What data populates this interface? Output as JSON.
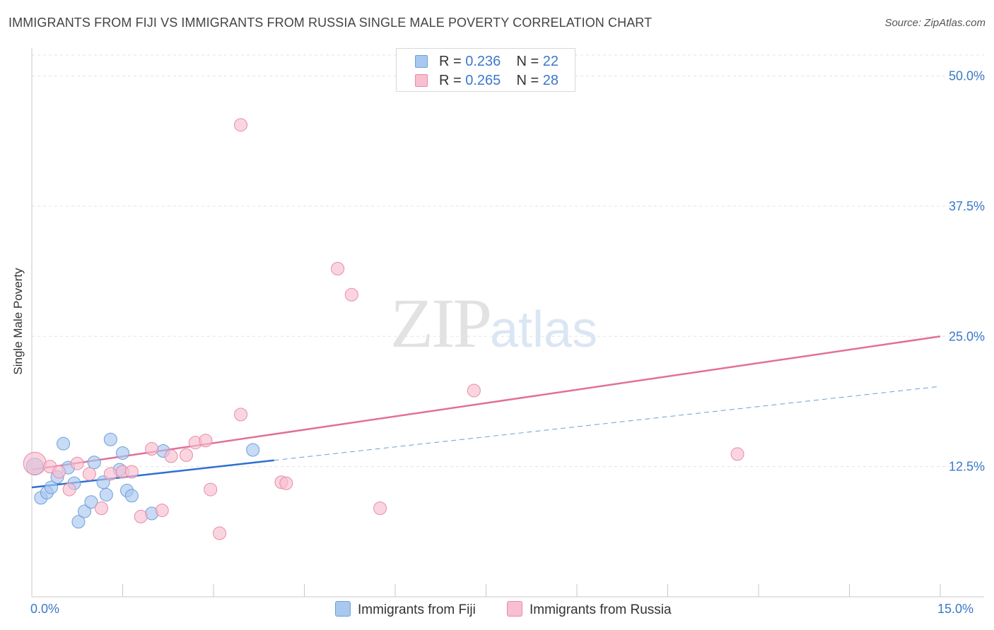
{
  "header": {
    "title": "IMMIGRANTS FROM FIJI VS IMMIGRANTS FROM RUSSIA SINGLE MALE POVERTY CORRELATION CHART",
    "source": "Source: ZipAtlas.com"
  },
  "watermark": {
    "zip": "ZIP",
    "atlas": "atlas"
  },
  "legend": {
    "rows": [
      {
        "r_label": "R =",
        "r_value": "0.236",
        "n_label": "N =",
        "n_value": "22",
        "color": "#a9c8ef",
        "border": "#6c9fdc"
      },
      {
        "r_label": "R =",
        "r_value": "0.265",
        "n_label": "N =",
        "n_value": "28",
        "color": "#f7bfd0",
        "border": "#e98aa8"
      }
    ]
  },
  "bottom_legend": {
    "fiji": "Immigrants from Fiji",
    "russia": "Immigrants from Russia"
  },
  "chart_data": {
    "type": "scatter",
    "title": "IMMIGRANTS FROM FIJI VS IMMIGRANTS FROM RUSSIA SINGLE MALE POVERTY CORRELATION CHART",
    "xlabel": "",
    "ylabel": "Single Male Poverty",
    "xlim": [
      0,
      15
    ],
    "ylim": [
      0,
      52
    ],
    "x_tick_labels": {
      "min": "0.0%",
      "max": "15.0%"
    },
    "y_ticks": [
      12.5,
      25.0,
      37.5,
      50.0
    ],
    "y_tick_labels": [
      "12.5%",
      "25.0%",
      "37.5%",
      "50.0%"
    ],
    "grid": true,
    "series": [
      {
        "name": "Immigrants from Fiji",
        "color": "#a9c8ef",
        "stroke": "#6c9fdc",
        "line_color": "#2f6fd0",
        "trend": {
          "x0": 0.0,
          "y0": 10.5,
          "x1": 4.0,
          "y1": 13.1,
          "dash_x1": 15.0,
          "dash_y1": 20.2
        },
        "points": [
          [
            0.05,
            12.5,
            12
          ],
          [
            0.15,
            9.5,
            9
          ],
          [
            0.25,
            10.0,
            9
          ],
          [
            0.32,
            10.5,
            9
          ],
          [
            0.42,
            11.5,
            9
          ],
          [
            0.52,
            14.7,
            9
          ],
          [
            0.6,
            12.4,
            9
          ],
          [
            0.7,
            10.9,
            9
          ],
          [
            0.77,
            7.2,
            9
          ],
          [
            0.87,
            8.2,
            9
          ],
          [
            0.98,
            9.1,
            9
          ],
          [
            1.03,
            12.9,
            9
          ],
          [
            1.18,
            11.0,
            9
          ],
          [
            1.23,
            9.8,
            9
          ],
          [
            1.3,
            15.1,
            9
          ],
          [
            1.45,
            12.2,
            9
          ],
          [
            1.5,
            13.8,
            9
          ],
          [
            1.57,
            10.2,
            9
          ],
          [
            1.65,
            9.7,
            9
          ],
          [
            1.98,
            8.0,
            9
          ],
          [
            2.17,
            14.0,
            9
          ],
          [
            3.65,
            14.1,
            9
          ]
        ]
      },
      {
        "name": "Immigrants from Russia",
        "color": "#f7bfd0",
        "stroke": "#e98aa8",
        "line_color": "#e0709a",
        "trend": {
          "x0": 0.0,
          "y0": 12.2,
          "x1": 15.0,
          "y1": 25.0
        },
        "points": [
          [
            0.05,
            12.8,
            16
          ],
          [
            0.3,
            12.5,
            9
          ],
          [
            0.45,
            12.0,
            9
          ],
          [
            0.62,
            10.3,
            9
          ],
          [
            0.75,
            12.8,
            9
          ],
          [
            0.95,
            11.8,
            9
          ],
          [
            1.15,
            8.5,
            9
          ],
          [
            1.3,
            11.8,
            9
          ],
          [
            1.5,
            12.0,
            9
          ],
          [
            1.65,
            12.0,
            9
          ],
          [
            1.8,
            7.7,
            9
          ],
          [
            1.98,
            14.2,
            9
          ],
          [
            2.15,
            8.3,
            9
          ],
          [
            2.3,
            13.5,
            9
          ],
          [
            2.55,
            13.6,
            9
          ],
          [
            2.7,
            14.8,
            9
          ],
          [
            2.87,
            15.0,
            9
          ],
          [
            2.95,
            10.3,
            9
          ],
          [
            3.1,
            6.1,
            9
          ],
          [
            3.45,
            17.5,
            9
          ],
          [
            3.45,
            45.3,
            9
          ],
          [
            4.12,
            11.0,
            9
          ],
          [
            4.2,
            10.9,
            9
          ],
          [
            5.05,
            31.5,
            9
          ],
          [
            5.28,
            29.0,
            9
          ],
          [
            5.75,
            8.5,
            9
          ],
          [
            7.3,
            19.8,
            9
          ],
          [
            11.65,
            13.7,
            9
          ]
        ]
      }
    ]
  }
}
